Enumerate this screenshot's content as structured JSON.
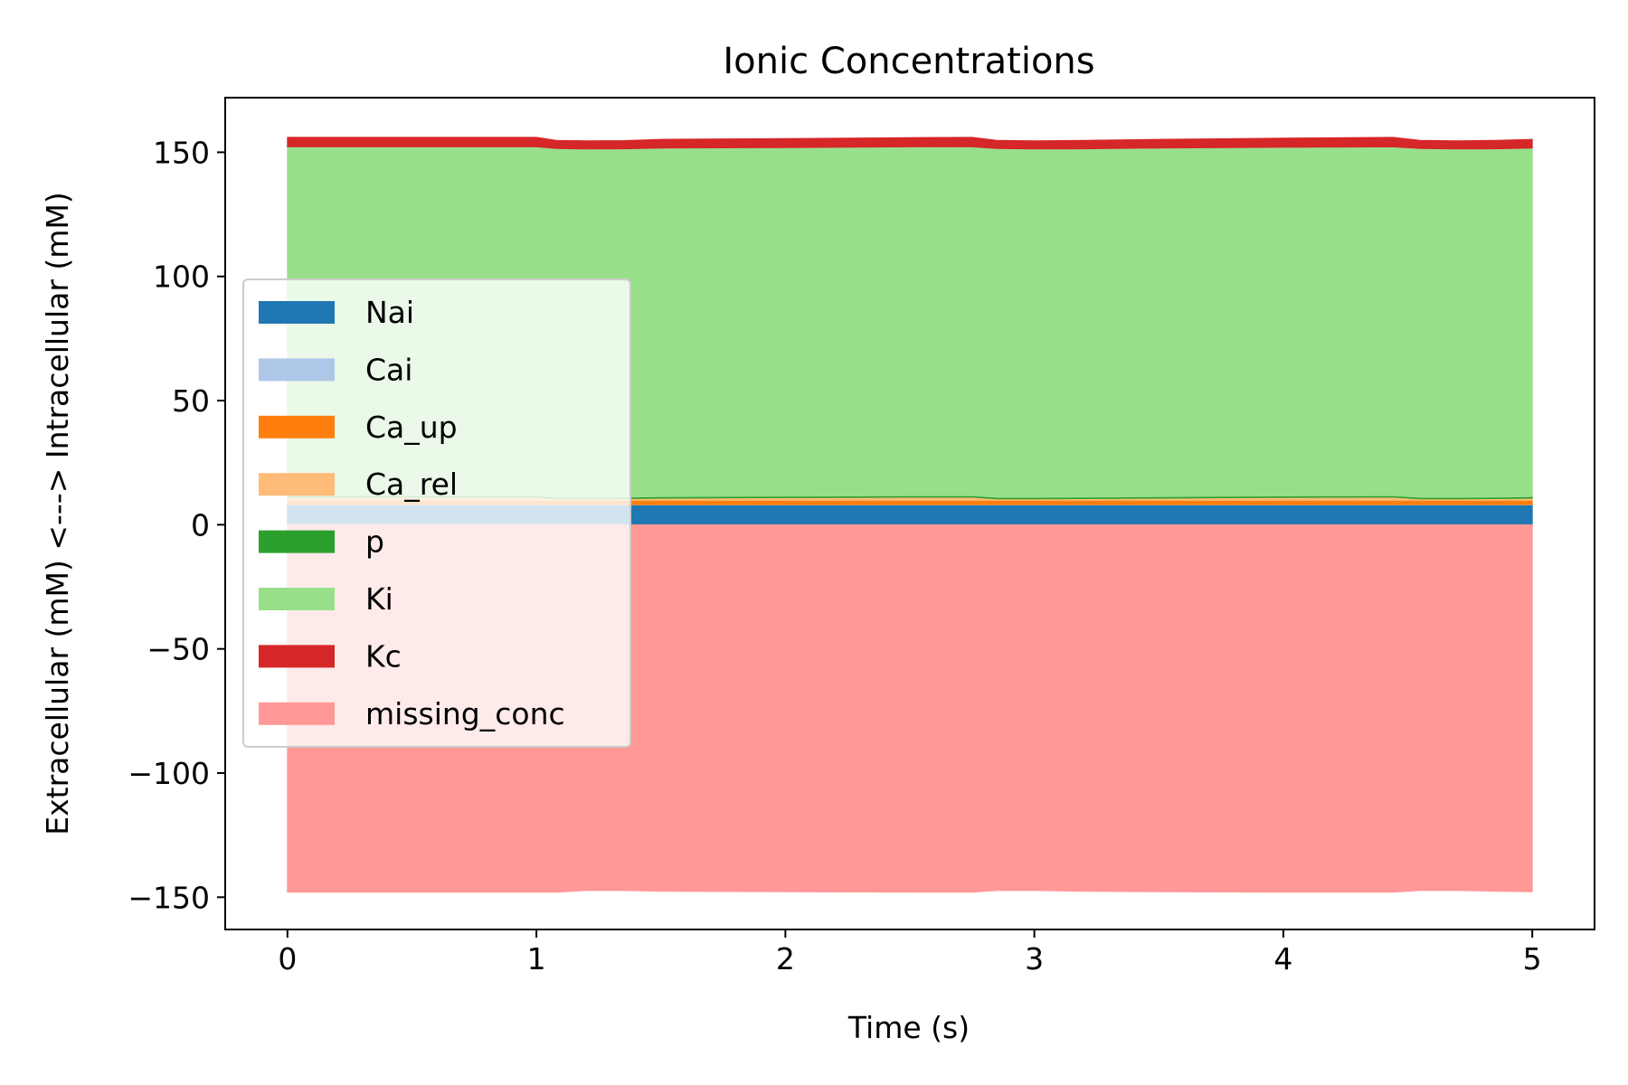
{
  "chart_data": {
    "type": "area",
    "title": "Ionic Concentrations",
    "xlabel": "Time (s)",
    "ylabel": "Extracellular (mM) <---> Intracellular (mM)",
    "xlim": [
      -0.25,
      5.25
    ],
    "ylim": [
      -163,
      172
    ],
    "xticks": [
      0,
      1,
      2,
      3,
      4,
      5
    ],
    "xtick_labels": [
      "0",
      "1",
      "2",
      "3",
      "4",
      "5"
    ],
    "yticks": [
      -150,
      -100,
      -50,
      0,
      50,
      100,
      150
    ],
    "ytick_labels": [
      "−150",
      "−100",
      "−50",
      "0",
      "50",
      "100",
      "150"
    ],
    "grid": false,
    "legend_position": "center-left",
    "x": [
      0,
      1.0,
      1.08,
      1.2,
      1.35,
      1.5,
      2.0,
      2.5,
      2.75,
      2.85,
      3.0,
      3.2,
      3.5,
      4.0,
      4.44,
      4.55,
      4.7,
      4.85,
      5.0
    ],
    "series": [
      {
        "name": "Nai",
        "color": "#1f77b4",
        "values": [
          8.0,
          8.0,
          8.0,
          8.0,
          8.0,
          8.0,
          8.0,
          8.0,
          8.0,
          8.0,
          8.0,
          8.0,
          8.0,
          8.0,
          8.0,
          8.0,
          8.0,
          8.0,
          8.0
        ]
      },
      {
        "name": "Cai",
        "color": "#aec7e8",
        "values": [
          0.1,
          0.1,
          0.1,
          0.1,
          0.1,
          0.1,
          0.1,
          0.1,
          0.1,
          0.1,
          0.1,
          0.1,
          0.1,
          0.1,
          0.1,
          0.1,
          0.1,
          0.1,
          0.1
        ]
      },
      {
        "name": "Ca_up",
        "color": "#ff7f0e",
        "values": [
          1.8,
          1.8,
          1.8,
          1.8,
          1.8,
          1.8,
          1.8,
          1.8,
          1.8,
          1.8,
          1.8,
          1.8,
          1.8,
          1.8,
          1.8,
          1.8,
          1.8,
          1.8,
          1.8
        ]
      },
      {
        "name": "Ca_rel",
        "color": "#ffbb78",
        "values": [
          1.2,
          1.2,
          0.5,
          0.5,
          0.6,
          0.8,
          1.0,
          1.2,
          1.2,
          0.5,
          0.5,
          0.6,
          0.8,
          1.1,
          1.2,
          0.5,
          0.5,
          0.6,
          0.8
        ]
      },
      {
        "name": "p",
        "color": "#2ca02c",
        "values": [
          0.6,
          0.6,
          0.6,
          0.6,
          0.6,
          0.6,
          0.6,
          0.6,
          0.6,
          0.6,
          0.6,
          0.6,
          0.6,
          0.6,
          0.6,
          0.6,
          0.6,
          0.6,
          0.6
        ]
      },
      {
        "name": "Ki",
        "color": "#98df8a",
        "values": [
          140.5,
          140.5,
          140.5,
          140.3,
          140.3,
          140.4,
          140.4,
          140.5,
          140.5,
          140.5,
          140.3,
          140.3,
          140.4,
          140.4,
          140.5,
          140.5,
          140.3,
          140.3,
          140.4
        ]
      },
      {
        "name": "Kc",
        "color": "#d62728",
        "values": [
          3.8,
          3.8,
          3.3,
          3.3,
          3.3,
          3.5,
          3.6,
          3.7,
          3.8,
          3.3,
          3.3,
          3.4,
          3.5,
          3.7,
          3.8,
          3.3,
          3.3,
          3.4,
          3.5
        ]
      },
      {
        "name": "missing_conc",
        "color": "#ff9896",
        "baseline": "extracellular",
        "values": [
          -148.0,
          -148.0,
          -148.0,
          -147.3,
          -147.3,
          -147.6,
          -147.8,
          -148.0,
          -148.0,
          -147.3,
          -147.3,
          -147.6,
          -147.8,
          -148.0,
          -148.0,
          -147.3,
          -147.3,
          -147.6,
          -147.8
        ]
      }
    ]
  }
}
